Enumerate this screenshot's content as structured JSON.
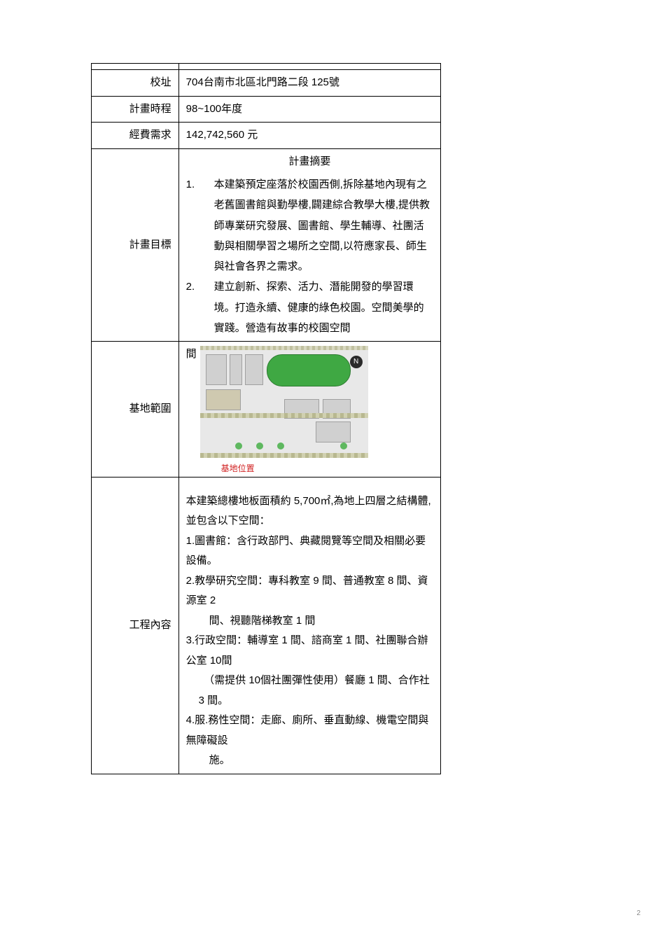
{
  "rows": {
    "address": {
      "label": "校址",
      "value": "704台南市北區北門路二段 125號"
    },
    "period": {
      "label": "計畫時程",
      "value": "98~100年度"
    },
    "budget": {
      "label": "經費需求",
      "value": "142,742,560 元"
    },
    "goal": {
      "label": "計畫目標",
      "summary_title": "計畫摘要",
      "items": [
        {
          "num": "1.",
          "text": "本建築預定座落於校園西側,拆除基地內現有之老舊圖書館與勤學樓,闢建綜合教學大樓,提供教師專業研究發展、圖書館、學生輔導、社團活動與相關學習之場所之空間,以符應家長、師生與社會各界之需求。"
        },
        {
          "num": "2.",
          "text": "建立創新、探索、活力、潛能開發的學習環境。打造永續、健康的綠色校園。空間美學的實踐。營造有故事的校園空間"
        }
      ]
    },
    "site": {
      "label": "基地範圍",
      "leading": "間",
      "map_caption": "基地位置",
      "compass": "N"
    },
    "content": {
      "label": "工程內容",
      "intro": "本建築總樓地板面積約 5,700㎡,為地上四層之結構體,並包含以下空間：",
      "lines": [
        "1.圖書館：含行政部門、典藏閱覽等空間及相關必要設備。",
        "2.教學研究空間：專科教室 9 間、普通教室 8 間、資源室 2",
        "　間、視聽階梯教室 1 間",
        "3.行政空間：輔導室 1 間、諮商室 1 間、社團聯合辦公室 10間",
        "　（需提供 10個社團彈性使用）餐廳 1 間、合作社 3 間。",
        "4.服.務性空間：走廊、廁所、垂直動線、機電空間與無障礙設",
        "　施。"
      ]
    }
  },
  "page_number": "2",
  "colors": {
    "text": "#000000",
    "border": "#000000",
    "caption": "#d02020",
    "field": "#3fa843",
    "building": "#d0d0d0"
  }
}
